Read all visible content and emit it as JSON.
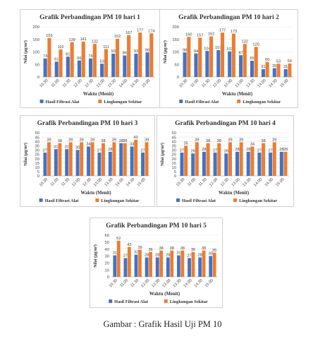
{
  "caption": "Gambar : Grafik Hasil Uji PM 10",
  "colors": {
    "filter": "#4472c4",
    "ambient": "#ed7d31"
  },
  "chart_data": [
    {
      "type": "bar",
      "title": "Grafik Perbandingan PM 10 hari 1",
      "xlabel": "Waktu (Menit)",
      "ylabel": "Nilai (µg/m³)",
      "ylim": [
        0,
        200
      ],
      "yticks": [
        0,
        50,
        100,
        150,
        200
      ],
      "categories": [
        "10.30",
        "11.00",
        "11.30",
        "12.00",
        "12.30",
        "13.00",
        "13.30",
        "14.00",
        "14.30",
        "15.00"
      ],
      "series": [
        {
          "name": "Hasil Filtrasi Alat",
          "values": [
            74,
            61,
            81,
            66,
            74,
            53,
            93,
            86,
            93,
            98
          ]
        },
        {
          "name": "Lingkungan Sekitar",
          "values": [
            155,
            110,
            139,
            141,
            132,
            111,
            152,
            167,
            177,
            174
          ]
        }
      ],
      "legend": "bottom"
    },
    {
      "type": "bar",
      "title": "Grafik Perbandingan PM 10 hari 2",
      "xlabel": "Waktu (Menit)",
      "ylabel": "Nilai (µg/m³)",
      "ylim": [
        0,
        200
      ],
      "yticks": [
        0,
        50,
        100,
        150,
        200
      ],
      "categories": [
        "10.30",
        "11.00",
        "11.30",
        "12.00",
        "12.30",
        "13.00",
        "13.30",
        "14.00",
        "14.30",
        "15.00"
      ],
      "series": [
        {
          "name": "Hasil Filtrasi Alat",
          "values": [
            98,
            94,
            104,
            107,
            102,
            87,
            65,
            31,
            35,
            31
          ]
        },
        {
          "name": "Lingkungan Sekitar",
          "values": [
            160,
            157,
            162,
            177,
            173,
            132,
            120,
            60,
            53,
            54
          ]
        }
      ],
      "legend": "bottom"
    },
    {
      "type": "bar",
      "title": "Grafik Perbandingan PM 10 hari 3",
      "xlabel": "Waktu (Menit)",
      "ylabel": "Nilai (µg/m³)",
      "ylim": [
        0,
        50
      ],
      "yticks": [
        0,
        5,
        10,
        15,
        20,
        25,
        30,
        35,
        40,
        45,
        50
      ],
      "categories": [
        "10.30",
        "11.00",
        "11.30",
        "12.00",
        "12.30",
        "13.00",
        "13.30",
        "14.00",
        "14.30",
        "15.00"
      ],
      "series": [
        {
          "name": "Hasil Filtrasi Alat",
          "values": [
            27,
            31,
            31,
            30,
            34,
            27,
            28,
            38,
            34,
            27
          ]
        },
        {
          "name": "Lingkungan Sekitar",
          "values": [
            39,
            38,
            39,
            39,
            39,
            38,
            39,
            38,
            42,
            39
          ]
        }
      ],
      "legend": "bottom"
    },
    {
      "type": "bar",
      "title": "Grafik Perbandingan PM 10 hari 4",
      "xlabel": "Waktu (Menit)",
      "ylabel": "Nilai (µg/m³)",
      "ylim": [
        0,
        50
      ],
      "yticks": [
        0,
        5,
        10,
        15,
        20,
        25,
        30,
        35,
        40,
        45,
        50
      ],
      "categories": [
        "10.30",
        "11.00",
        "11.30",
        "12.00",
        "12.30",
        "13.00",
        "13.30",
        "14.00",
        "14.30",
        "15.00"
      ],
      "series": [
        {
          "name": "Hasil Filtrasi Alat",
          "values": [
            27,
            26,
            28,
            27,
            26,
            28,
            28,
            27,
            27,
            28
          ]
        },
        {
          "name": "Lingkungan Sekitar",
          "values": [
            35,
            39,
            38,
            38,
            39,
            39,
            34,
            38,
            39,
            28
          ]
        }
      ],
      "legend": "bottom"
    },
    {
      "type": "bar",
      "title": "Grafik Perbandingan PM 10 hari 5",
      "xlabel": "Waktu (Menit)",
      "ylabel": "Nilai (µg/m³)",
      "ylim": [
        0,
        60
      ],
      "yticks": [
        0,
        10,
        20,
        30,
        40,
        50,
        60
      ],
      "categories": [
        "10.30",
        "11.00",
        "11.30",
        "12.00",
        "12.30",
        "13.00",
        "13.30",
        "14.00",
        "14.30",
        "15.00"
      ],
      "series": [
        {
          "name": "Hasil Filtrasi Alat",
          "values": [
            31,
            27,
            32,
            28,
            28,
            28,
            31,
            27,
            28,
            30
          ]
        },
        {
          "name": "Lingkungan Sekitar",
          "values": [
            52,
            43,
            39,
            36,
            38,
            38,
            38,
            36,
            38,
            35
          ]
        }
      ],
      "legend": "bottom"
    }
  ]
}
